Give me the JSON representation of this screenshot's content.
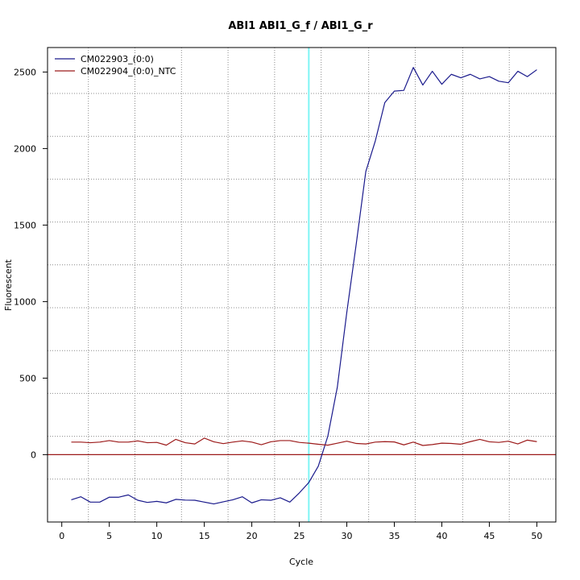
{
  "chart_data": {
    "type": "line",
    "title": "ABI1  ABI1_G_f / ABI1_G_r",
    "xlabel": "Cycle",
    "ylabel": "Fluorescent",
    "xlim": [
      -1.5,
      52
    ],
    "ylim": [
      -440,
      2660
    ],
    "x_ticks": [
      0,
      5,
      10,
      15,
      20,
      25,
      30,
      35,
      40,
      45,
      50
    ],
    "y_ticks": [
      0,
      500,
      1000,
      1500,
      2000,
      2500
    ],
    "grid": true,
    "grid_h": [
      -160,
      120,
      400,
      680,
      960,
      1240,
      1520,
      1800,
      2080,
      2360
    ],
    "grid_v": [
      2.8,
      7.7,
      12.6,
      17.5,
      22.4,
      27.3,
      32.3,
      37.2,
      42.2,
      47.1
    ],
    "baseline": 0,
    "threshold_cycle": 26,
    "threshold_color": "#7ff5f5",
    "legend_position": "top-left",
    "series": [
      {
        "name": "CM022903_(0:0)",
        "color": "#1a1a8c",
        "x": [
          1,
          2,
          3,
          4,
          5,
          6,
          7,
          8,
          9,
          10,
          11,
          12,
          13,
          14,
          15,
          16,
          17,
          18,
          19,
          20,
          21,
          22,
          23,
          24,
          25,
          26,
          27,
          28,
          29,
          30,
          31,
          32,
          33,
          34,
          35,
          36,
          37,
          38,
          39,
          40,
          41,
          42,
          43,
          44,
          45,
          46,
          47,
          48,
          49,
          50
        ],
        "y": [
          -295,
          -275,
          -310,
          -310,
          -278,
          -278,
          -263,
          -298,
          -312,
          -305,
          -315,
          -292,
          -297,
          -298,
          -310,
          -322,
          -308,
          -295,
          -275,
          -315,
          -295,
          -298,
          -282,
          -310,
          -250,
          -182,
          -75,
          120,
          440,
          930,
          1380,
          1850,
          2050,
          2300,
          2375,
          2380,
          2530,
          2415,
          2505,
          2420,
          2485,
          2462,
          2485,
          2455,
          2470,
          2440,
          2430,
          2505,
          2470,
          2515
        ]
      },
      {
        "name": "CM022904_(0:0)_NTC",
        "color": "#9c1a1a",
        "x": [
          1,
          2,
          3,
          4,
          5,
          6,
          7,
          8,
          9,
          10,
          11,
          12,
          13,
          14,
          15,
          16,
          17,
          18,
          19,
          20,
          21,
          22,
          23,
          24,
          25,
          26,
          27,
          28,
          29,
          30,
          31,
          32,
          33,
          34,
          35,
          36,
          37,
          38,
          39,
          40,
          41,
          42,
          43,
          44,
          45,
          46,
          47,
          48,
          49,
          50
        ],
        "y": [
          82,
          82,
          78,
          82,
          92,
          82,
          82,
          90,
          78,
          80,
          62,
          100,
          78,
          70,
          108,
          84,
          72,
          82,
          90,
          82,
          65,
          84,
          92,
          92,
          80,
          75,
          68,
          62,
          75,
          88,
          73,
          70,
          82,
          85,
          83,
          64,
          82,
          60,
          66,
          75,
          73,
          68,
          85,
          100,
          84,
          80,
          88,
          70,
          95,
          85
        ]
      }
    ]
  }
}
